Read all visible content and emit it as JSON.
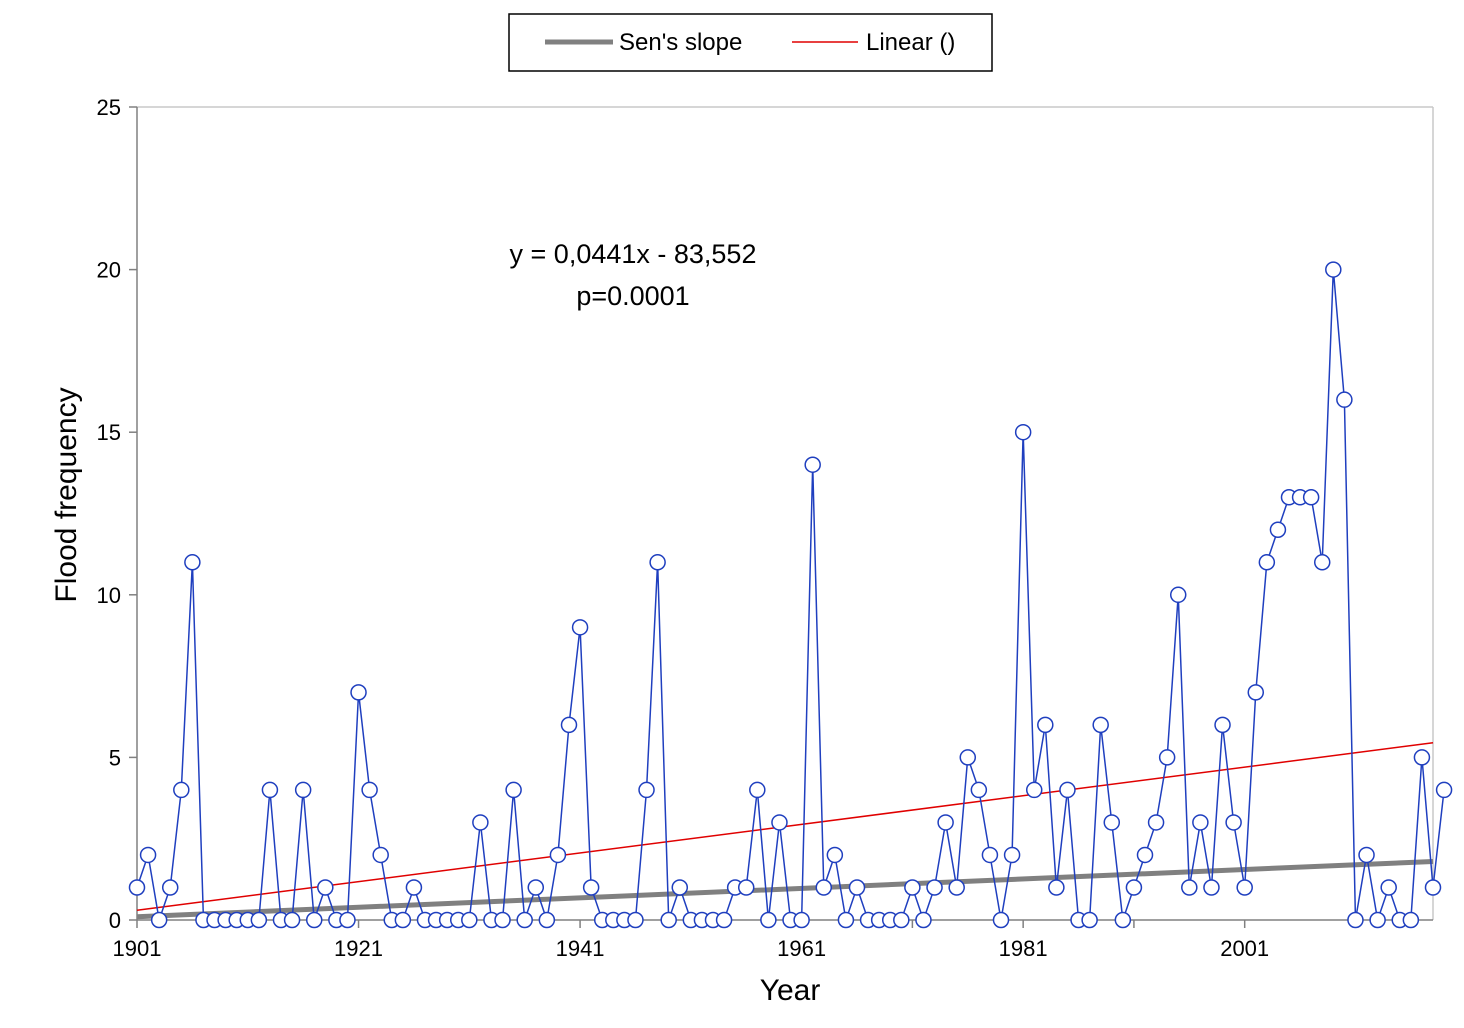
{
  "chart_data": {
    "type": "line",
    "title": "",
    "xlabel": "Year",
    "ylabel": "Flood frequency",
    "xlim": [
      1901,
      2018
    ],
    "ylim": [
      0,
      25
    ],
    "x_ticks": [
      "1901",
      "1921",
      "1941",
      "1961",
      "1981",
      "2001"
    ],
    "y_ticks": [
      "0",
      "5",
      "10",
      "15",
      "20",
      "25"
    ],
    "grid": false,
    "legend_position": "top-center",
    "legend": [
      "Sen's slope",
      "Linear ()"
    ],
    "annotations": [
      "y = 0,0441x - 83,552",
      "p=0.0001"
    ],
    "series": [
      {
        "x_start": 1901,
        "x_step": 1,
        "color": "#1f3fbf",
        "marker": "circle",
        "values": [
          1,
          2,
          0,
          1,
          4,
          11,
          0,
          0,
          0,
          0,
          0,
          0,
          4,
          0,
          0,
          4,
          0,
          1,
          0,
          0,
          7,
          4,
          2,
          0,
          0,
          1,
          0,
          0,
          0,
          0,
          0,
          3,
          0,
          0,
          4,
          0,
          1,
          0,
          2,
          6,
          9,
          1,
          0,
          0,
          0,
          0,
          4,
          11,
          0,
          1,
          0,
          0,
          0,
          0,
          1,
          1,
          4,
          0,
          3,
          0,
          0,
          14,
          1,
          2,
          0,
          1,
          0,
          0,
          0,
          0,
          1,
          0,
          1,
          3,
          1,
          5,
          4,
          2,
          0,
          2,
          15,
          4,
          6,
          1,
          4,
          0,
          0,
          6,
          3,
          0,
          1,
          2,
          3,
          5,
          10,
          1,
          3,
          1,
          6,
          3,
          1,
          7,
          11,
          12,
          13,
          13,
          13,
          11,
          20,
          16,
          0,
          2,
          0,
          1,
          0,
          0,
          5,
          1,
          4
        ]
      },
      {
        "name": "Sen's slope",
        "type": "trend",
        "color": "#808080",
        "x": [
          1901,
          2018
        ],
        "values": [
          0.1,
          1.8
        ]
      },
      {
        "name": "Linear ()",
        "type": "trend",
        "color": "#e00000",
        "x": [
          1901,
          2018
        ],
        "values": [
          0.3,
          5.45
        ]
      }
    ]
  }
}
